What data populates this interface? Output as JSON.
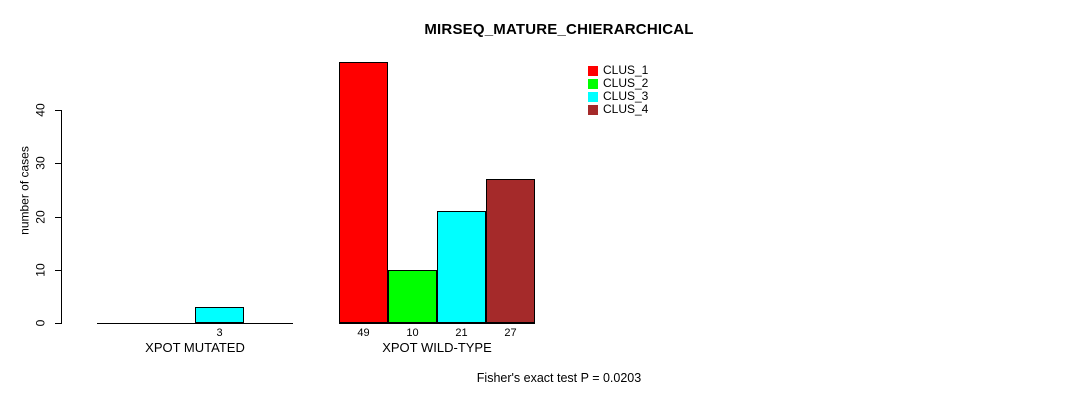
{
  "chart_data": {
    "type": "bar",
    "title": "MIRSEQ_MATURE_CHIERARCHICAL",
    "ylabel": "number of cases",
    "xlabel": "",
    "yticks": [
      0,
      10,
      20,
      30,
      40
    ],
    "ylim": [
      0,
      50
    ],
    "grid": false,
    "legend_position": "top-right",
    "categories": [
      "XPOT MUTATED",
      "XPOT WILD-TYPE"
    ],
    "series": [
      {
        "name": "CLUS_1",
        "color": "#FF0000",
        "values": [
          0,
          49
        ]
      },
      {
        "name": "CLUS_2",
        "color": "#00FF00",
        "values": [
          0,
          10
        ]
      },
      {
        "name": "CLUS_3",
        "color": "#00FFFF",
        "values": [
          3,
          21
        ]
      },
      {
        "name": "CLUS_4",
        "color": "#A52A2A",
        "values": [
          0,
          27
        ]
      }
    ],
    "bar_value_labels": {
      "XPOT MUTATED": [
        "3"
      ],
      "XPOT WILD-TYPE": [
        "49",
        "10",
        "21",
        "27"
      ]
    },
    "annotation": "Fisher's exact test P = 0.0203"
  }
}
